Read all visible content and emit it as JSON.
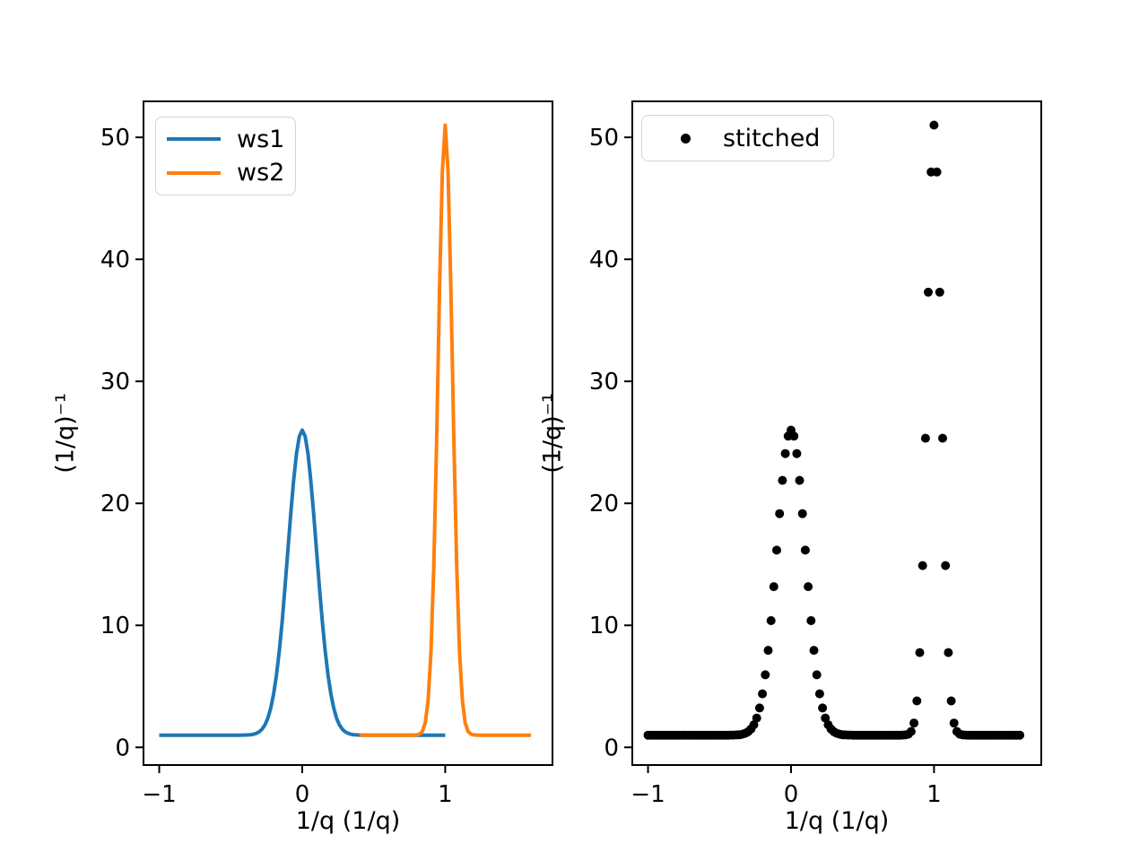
{
  "figure": {
    "background": "#ffffff",
    "title": ""
  },
  "chart_data": [
    {
      "type": "line",
      "title": "",
      "xlabel": "1/q (1/q)",
      "ylabel": "(1/q)⁻¹",
      "xlim": [
        -1.11,
        1.75
      ],
      "ylim": [
        -1.45,
        52.95
      ],
      "xticks": [
        -1,
        0,
        1
      ],
      "yticks": [
        0,
        10,
        20,
        30,
        40,
        50
      ],
      "grid": false,
      "legend": {
        "position": "upper left",
        "entries": [
          "ws1",
          "ws2"
        ]
      },
      "line_width": 4,
      "series": [
        {
          "name": "ws1",
          "color": "#1f77b4",
          "x_start": -1.0,
          "x_end": 1.0,
          "step": 0.02,
          "baseline": 1.0,
          "components": [
            {
              "amplitude": 25.0,
              "center": 0.0,
              "sigma": 0.1
            }
          ],
          "peak_x": 0.0,
          "peak_y": 26.0
        },
        {
          "name": "ws2",
          "color": "#ff7f0e",
          "x_start": 0.4,
          "x_end": 1.6,
          "step": 0.02,
          "baseline": 1.0,
          "components": [
            {
              "amplitude": 50.0,
              "center": 1.0,
              "sigma": 0.05
            }
          ],
          "peak_x": 1.0,
          "peak_y": 51.0
        }
      ]
    },
    {
      "type": "scatter",
      "title": "",
      "xlabel": "1/q (1/q)",
      "ylabel": "(1/q)⁻¹",
      "xlim": [
        -1.11,
        1.75
      ],
      "ylim": [
        -1.45,
        52.95
      ],
      "xticks": [
        -1,
        0,
        1
      ],
      "yticks": [
        0,
        10,
        20,
        30,
        40,
        50
      ],
      "grid": false,
      "legend": {
        "position": "upper left",
        "entries": [
          "stitched"
        ]
      },
      "marker": "circle",
      "marker_radius": 5,
      "series": [
        {
          "name": "stitched",
          "color": "#000000",
          "x_start": -1.0,
          "x_end": 1.6,
          "step": 0.02,
          "baseline": 1.0,
          "components": [
            {
              "amplitude": 25.0,
              "center": 0.0,
              "sigma": 0.1
            },
            {
              "amplitude": 50.0,
              "center": 1.0,
              "sigma": 0.05
            }
          ],
          "peaks": [
            {
              "x": 0.0,
              "y": 26.0
            },
            {
              "x": 1.0,
              "y": 51.0
            }
          ]
        }
      ]
    }
  ]
}
